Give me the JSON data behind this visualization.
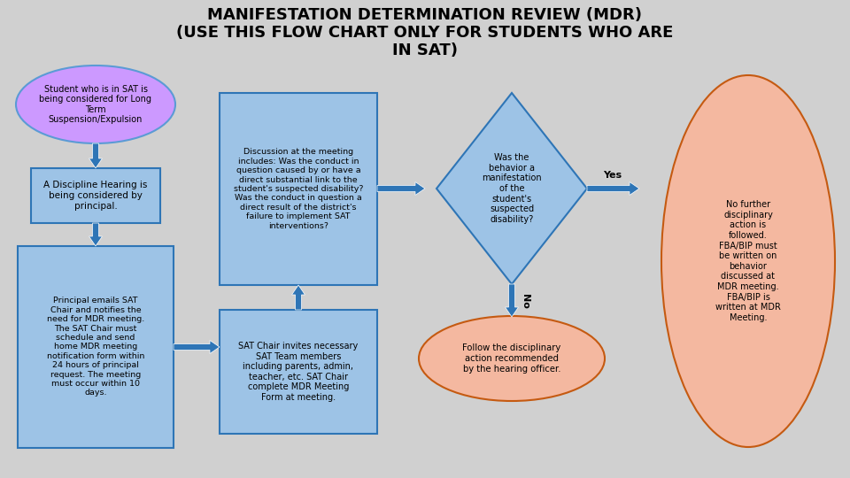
{
  "title_line1": "MANIFESTATION DETERMINATION REVIEW (MDR)",
  "title_line2": "(USE THIS FLOW CHART ONLY FOR STUDENTS WHO ARE",
  "title_line3": "IN SAT)",
  "bg_color": "#d0d0d0",
  "ellipse1_text": "Student who is in SAT is\nbeing considered for Long\nTerm\nSuspension/Expulsion",
  "ellipse1_fill": "#cc99ff",
  "ellipse1_edge": "#5b9bd5",
  "box1_text": "A Discipline Hearing is\nbeing considered by\nprincipal.",
  "box1_fill": "#9dc3e6",
  "box1_edge": "#2e75b6",
  "box2_text": "Principal emails SAT\nChair and notifies the\nneed for MDR meeting.\nThe SAT Chair must\nschedule and send\nhome MDR meeting\nnotification form within\n24 hours of principal\nrequest. The meeting\nmust occur within 10\ndays.",
  "box2_fill": "#9dc3e6",
  "box2_edge": "#2e75b6",
  "box3_text": "Discussion at the meeting\nincludes: Was the conduct in\nquestion caused by or have a\ndirect substantial link to the\nstudent's suspected disability?\nWas the conduct in question a\ndirect result of the district's\nfailure to implement SAT\ninterventions?",
  "box3_fill": "#9dc3e6",
  "box3_edge": "#2e75b6",
  "box4_text": "SAT Chair invites necessary\nSAT Team members\nincluding parents, admin,\nteacher, etc. SAT Chair\ncomplete MDR Meeting\nForm at meeting.",
  "box4_fill": "#9dc3e6",
  "box4_edge": "#2e75b6",
  "diamond_text": "Was the\nbehavior a\nmanifestation\nof the\nstudent's\nsuspected\ndisability?",
  "diamond_fill": "#9dc3e6",
  "diamond_edge": "#2e75b6",
  "ellipse2_text": "Follow the disciplinary\naction recommended\nby the hearing officer.",
  "ellipse2_fill": "#f4b8a0",
  "ellipse2_edge": "#c55a11",
  "ellipse3_text": "No further\ndisciplinary\naction is\nfollowed.\nFBA/BIP must\nbe written on\nbehavior\ndiscussed at\nMDR meeting.\nFBA/BIP is\nwritten at MDR\nMeeting.",
  "ellipse3_fill": "#f4b8a0",
  "ellipse3_edge": "#c55a11",
  "arrow_color": "#2e75b6",
  "text_color": "#000000",
  "yes_label": "Yes",
  "no_label": "No"
}
